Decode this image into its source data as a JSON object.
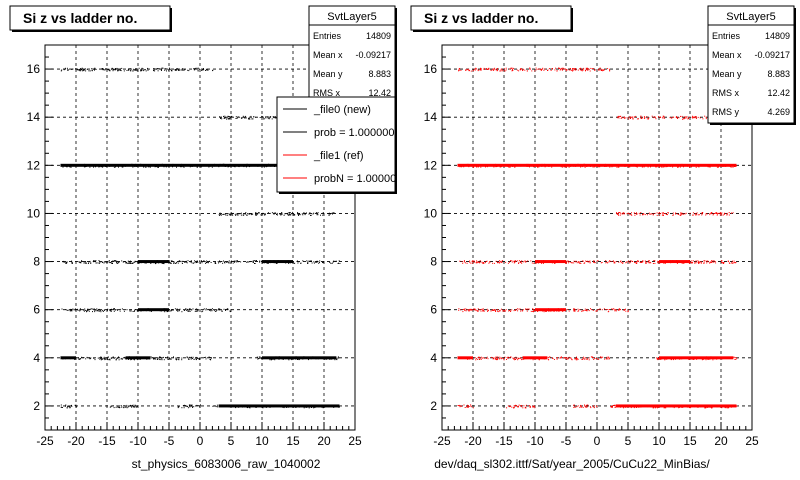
{
  "canvas": {
    "background": "#ffffff",
    "frame_color": "#000000"
  },
  "chart_data": [
    {
      "type": "scatter",
      "title": "Si z vs ladder no.",
      "xlabel": "st_physics_6083006_raw_1040002",
      "ylabel": "",
      "xlim": [
        -25,
        25
      ],
      "ylim": [
        1,
        17
      ],
      "xticks": [
        "-25",
        "-20",
        "-15",
        "-10",
        "-5",
        "0",
        "5",
        "10",
        "15",
        "20",
        "25"
      ],
      "yticks": [
        "2",
        "4",
        "6",
        "8",
        "10",
        "12",
        "14",
        "16"
      ],
      "grid": true,
      "stats_box": {
        "title": "SvtLayer5",
        "rows": [
          {
            "label": "Entries",
            "value": "14809"
          },
          {
            "label": "Mean x",
            "value": "-0.09217"
          },
          {
            "label": "Mean y",
            "value": "8.883"
          },
          {
            "label": "RMS x",
            "value": "12.42"
          }
        ]
      },
      "legend": {
        "placement": "top-right",
        "entries": [
          {
            "label": "_file0 (new)",
            "color": "#000000"
          },
          {
            "label": "prob = 1.000000",
            "color": "#000000"
          },
          {
            "label": "_file1 (ref)",
            "color": "#ff0000"
          },
          {
            "label": "probN = 1.000000",
            "color": "#ff0000"
          }
        ]
      },
      "series": [
        {
          "color": "#000000",
          "bands": [
            {
              "y": 2,
              "x": [
                [
                  -22.5,
                  -20
                ],
                [
                  -15,
                  -10
                ],
                [
                  -4,
                  0
                ],
                [
                  2,
                  22.5
                ]
              ],
              "dense": [
                [
                  3,
                  22.5
                ]
              ]
            },
            {
              "y": 4,
              "x": [
                [
                  -22.5,
                  2
                ],
                [
                  9,
                  22.5
                ]
              ],
              "dense": [
                [
                  -22.5,
                  -20
                ],
                [
                  -12,
                  -8
                ],
                [
                  10,
                  22
                ]
              ]
            },
            {
              "y": 6,
              "x": [
                [
                  -22.5,
                  5
                ]
              ],
              "dense": [
                [
                  -10,
                  -5
                ]
              ]
            },
            {
              "y": 8,
              "x": [
                [
                  -22.5,
                  22.5
                ]
              ],
              "dense": [
                [
                  -10,
                  -5
                ],
                [
                  10,
                  15
                ]
              ]
            },
            {
              "y": 10,
              "x": [
                [
                  3,
                  22
                ]
              ],
              "dense": []
            },
            {
              "y": 12,
              "x": [
                [
                  -22.5,
                  22.5
                ]
              ],
              "dense": [
                [
                  -22.5,
                  22.5
                ]
              ]
            },
            {
              "y": 14,
              "x": [
                [
                  3,
                  22
                ]
              ],
              "dense": []
            },
            {
              "y": 16,
              "x": [
                [
                  -22.5,
                  2
                ]
              ],
              "dense": []
            }
          ]
        }
      ]
    },
    {
      "type": "scatter",
      "title": "Si z vs ladder no.",
      "xlabel": "dev/daq_sl302.ittf/Sat/year_2005/CuCu22_MinBias/",
      "ylabel": "",
      "xlim": [
        -25,
        25
      ],
      "ylim": [
        1,
        17
      ],
      "xticks": [
        "-25",
        "-20",
        "-15",
        "-10",
        "-5",
        "0",
        "5",
        "10",
        "15",
        "20",
        "25"
      ],
      "yticks": [
        "2",
        "4",
        "6",
        "8",
        "10",
        "12",
        "14",
        "16"
      ],
      "grid": true,
      "stats_box": {
        "title": "SvtLayer5",
        "rows": [
          {
            "label": "Entries",
            "value": "14809"
          },
          {
            "label": "Mean x",
            "value": "-0.09217"
          },
          {
            "label": "Mean y",
            "value": "8.883"
          },
          {
            "label": "RMS x",
            "value": "12.42"
          },
          {
            "label": "RMS y",
            "value": "4.269"
          }
        ]
      },
      "series": [
        {
          "color": "#ff0000",
          "bands": [
            {
              "y": 2,
              "x": [
                [
                  -22.5,
                  -20
                ],
                [
                  -15,
                  -10
                ],
                [
                  -4,
                  0
                ],
                [
                  2,
                  22.5
                ]
              ],
              "dense": [
                [
                  3,
                  22.5
                ]
              ]
            },
            {
              "y": 4,
              "x": [
                [
                  -22.5,
                  2
                ],
                [
                  9,
                  22.5
                ]
              ],
              "dense": [
                [
                  -22.5,
                  -20
                ],
                [
                  -12,
                  -8
                ],
                [
                  10,
                  22
                ]
              ]
            },
            {
              "y": 6,
              "x": [
                [
                  -22.5,
                  5
                ]
              ],
              "dense": [
                [
                  -10,
                  -5
                ]
              ]
            },
            {
              "y": 8,
              "x": [
                [
                  -22.5,
                  22.5
                ]
              ],
              "dense": [
                [
                  -10,
                  -5
                ],
                [
                  10,
                  15
                ]
              ]
            },
            {
              "y": 10,
              "x": [
                [
                  3,
                  22
                ]
              ],
              "dense": []
            },
            {
              "y": 12,
              "x": [
                [
                  -22.5,
                  22.5
                ]
              ],
              "dense": [
                [
                  -22.5,
                  22.5
                ]
              ]
            },
            {
              "y": 14,
              "x": [
                [
                  3,
                  22
                ]
              ],
              "dense": []
            },
            {
              "y": 16,
              "x": [
                [
                  -22.5,
                  2
                ]
              ],
              "dense": []
            }
          ]
        }
      ]
    }
  ]
}
